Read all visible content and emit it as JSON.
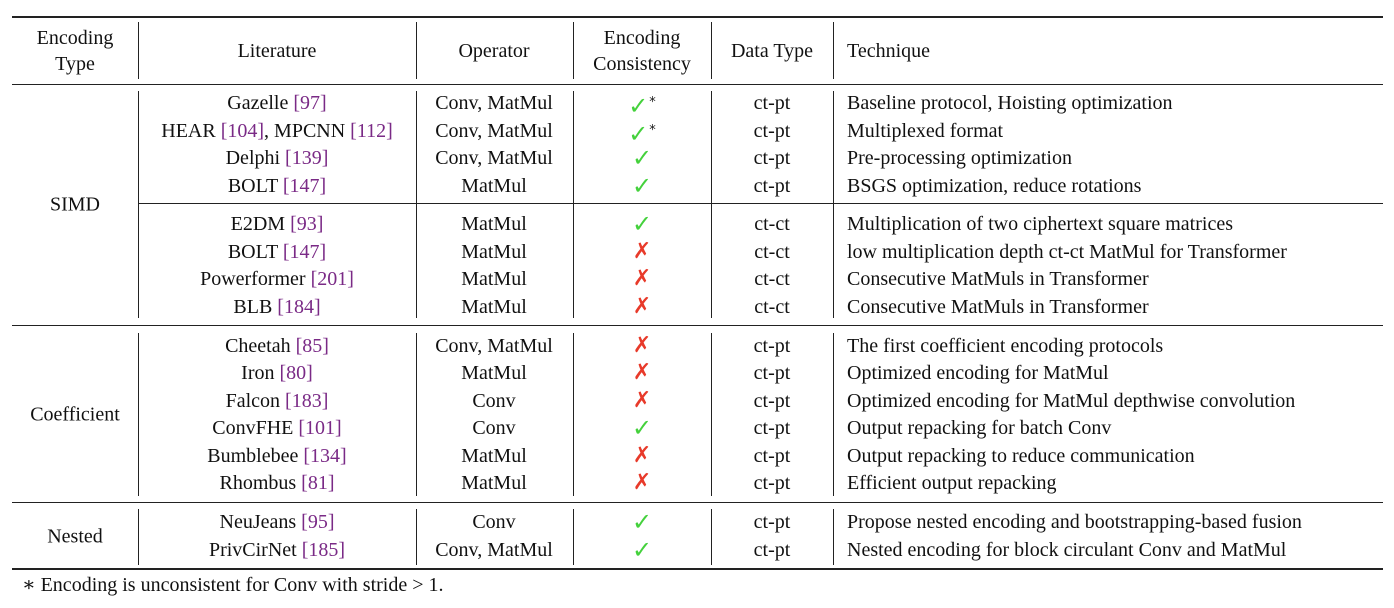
{
  "headers": {
    "encoding_type": [
      "Encoding",
      "Type"
    ],
    "literature": "Literature",
    "operator": "Operator",
    "consistency": [
      "Encoding",
      "Consistency"
    ],
    "data_type": "Data Type",
    "technique": "Technique"
  },
  "groups": [
    {
      "name": "SIMD",
      "subgroups": [
        [
          {
            "lit": [
              {
                "t": "Gazelle "
              },
              {
                "r": "[97]"
              }
            ],
            "op": "Conv, MatMul",
            "cons": "yes",
            "star": "*",
            "dtype": "ct-pt",
            "tech": "Baseline protocol, Hoisting optimization"
          },
          {
            "lit": [
              {
                "t": "HEAR "
              },
              {
                "r": "[104]"
              },
              {
                "t": ", MPCNN "
              },
              {
                "r": "[112]"
              }
            ],
            "op": "Conv, MatMul",
            "cons": "yes",
            "star": "*",
            "dtype": "ct-pt",
            "tech": "Multiplexed format"
          },
          {
            "lit": [
              {
                "t": "Delphi "
              },
              {
                "r": "[139]"
              }
            ],
            "op": "Conv, MatMul",
            "cons": "yes",
            "star": "",
            "dtype": "ct-pt",
            "tech": "Pre-processing optimization"
          },
          {
            "lit": [
              {
                "t": "BOLT "
              },
              {
                "r": "[147]"
              }
            ],
            "op": "MatMul",
            "cons": "yes",
            "star": "",
            "dtype": "ct-pt",
            "tech": "BSGS optimization, reduce rotations"
          }
        ],
        [
          {
            "lit": [
              {
                "t": "E2DM "
              },
              {
                "r": "[93]"
              }
            ],
            "op": "MatMul",
            "cons": "yes",
            "star": "",
            "dtype": "ct-ct",
            "tech": "Multiplication of two ciphertext square matrices"
          },
          {
            "lit": [
              {
                "t": "BOLT "
              },
              {
                "r": "[147]"
              }
            ],
            "op": "MatMul",
            "cons": "no",
            "star": "",
            "dtype": "ct-ct",
            "tech": "low multiplication depth ct-ct MatMul for Transformer"
          },
          {
            "lit": [
              {
                "t": "Powerformer "
              },
              {
                "r": "[201]"
              }
            ],
            "op": "MatMul",
            "cons": "no",
            "star": "",
            "dtype": "ct-ct",
            "tech": "Consecutive MatMuls in Transformer"
          },
          {
            "lit": [
              {
                "t": "BLB "
              },
              {
                "r": "[184]"
              }
            ],
            "op": "MatMul",
            "cons": "no",
            "star": "",
            "dtype": "ct-ct",
            "tech": "Consecutive MatMuls in Transformer"
          }
        ]
      ]
    },
    {
      "name": "Coefficient",
      "subgroups": [
        [
          {
            "lit": [
              {
                "t": "Cheetah "
              },
              {
                "r": "[85]"
              }
            ],
            "op": "Conv, MatMul",
            "cons": "no",
            "star": "",
            "dtype": "ct-pt",
            "tech": "The first coefficient encoding protocols"
          },
          {
            "lit": [
              {
                "t": "Iron "
              },
              {
                "r": "[80]"
              }
            ],
            "op": "MatMul",
            "cons": "no",
            "star": "",
            "dtype": "ct-pt",
            "tech": "Optimized encoding for MatMul"
          },
          {
            "lit": [
              {
                "t": "Falcon "
              },
              {
                "r": "[183]"
              }
            ],
            "op": "Conv",
            "cons": "no",
            "star": "",
            "dtype": "ct-pt",
            "tech": "Optimized encoding for MatMul depthwise convolution"
          },
          {
            "lit": [
              {
                "t": "ConvFHE "
              },
              {
                "r": "[101]"
              }
            ],
            "op": "Conv",
            "cons": "yes",
            "star": "",
            "dtype": "ct-pt",
            "tech": "Output repacking for batch Conv"
          },
          {
            "lit": [
              {
                "t": "Bumblebee "
              },
              {
                "r": "[134]"
              }
            ],
            "op": "MatMul",
            "cons": "no",
            "star": "",
            "dtype": "ct-pt",
            "tech": "Output repacking to reduce communication"
          },
          {
            "lit": [
              {
                "t": "Rhombus "
              },
              {
                "r": "[81]"
              }
            ],
            "op": "MatMul",
            "cons": "no",
            "star": "",
            "dtype": "ct-pt",
            "tech": "Efficient output repacking"
          }
        ]
      ]
    },
    {
      "name": "Nested",
      "subgroups": [
        [
          {
            "lit": [
              {
                "t": "NeuJeans "
              },
              {
                "r": "[95]"
              }
            ],
            "op": "Conv",
            "cons": "yes",
            "star": "",
            "dtype": "ct-pt",
            "tech": "Propose nested encoding and bootstrapping-based fusion"
          },
          {
            "lit": [
              {
                "t": "PrivCirNet "
              },
              {
                "r": "[185]"
              }
            ],
            "op": "Conv, MatMul",
            "cons": "yes",
            "star": "",
            "dtype": "ct-pt",
            "tech": "Nested encoding for block circulant Conv and MatMul"
          }
        ]
      ]
    }
  ],
  "symbols": {
    "yes": "✓",
    "no": "✗"
  },
  "colors": {
    "check": "#44d13c",
    "cross": "#e83a2a",
    "reference": "#7a2a86"
  },
  "footnote": "∗ Encoding is unconsistent for Conv with stride > 1."
}
